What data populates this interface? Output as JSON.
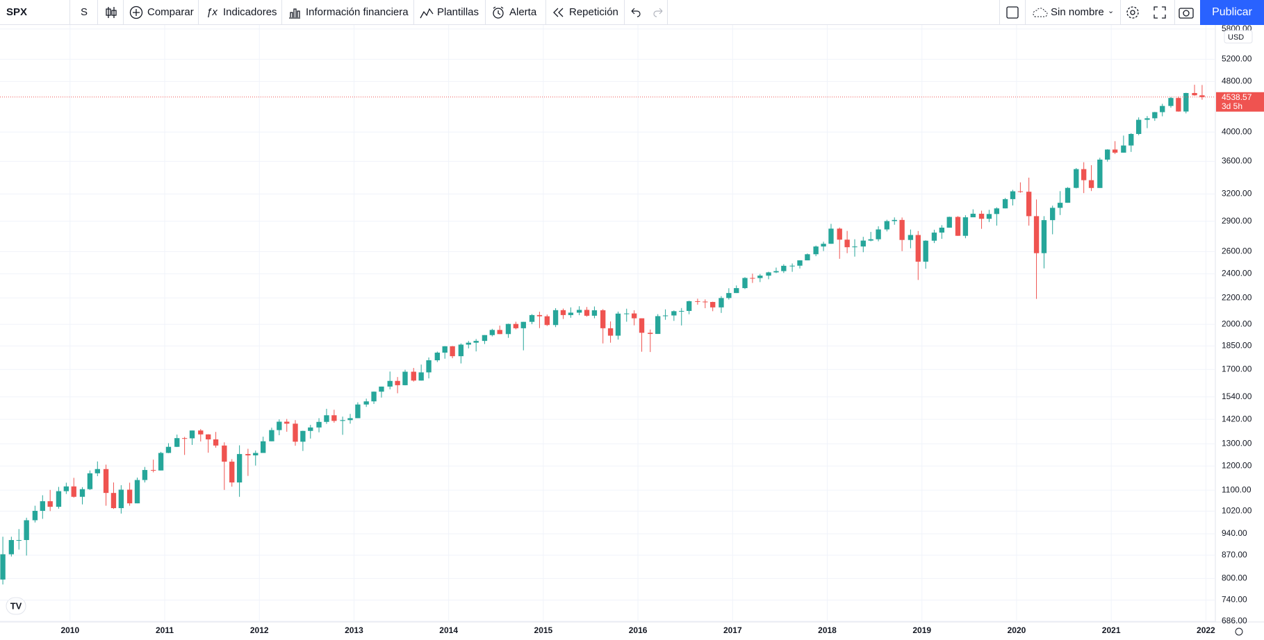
{
  "toolbar": {
    "symbol": "SPX",
    "interval": "S",
    "compare": "Comparar",
    "indicators": "Indicadores",
    "financials": "Información financiera",
    "templates": "Plantillas",
    "alert": "Alerta",
    "replay": "Repetición",
    "layout_name": "Sin nombre",
    "publish": "Publicar"
  },
  "chart_data": {
    "type": "candlestick",
    "log_scale": true,
    "grid": true,
    "currency": "USD",
    "countdown": "3d 5h",
    "last_price": 4538.57,
    "colors": {
      "up": "#26a69a",
      "down": "#ef5350",
      "last_price": "#ef5350"
    },
    "xlim": [
      2009.26,
      2022.1
    ],
    "xticks": [
      2010,
      2011,
      2012,
      2013,
      2014,
      2015,
      2016,
      2017,
      2018,
      2019,
      2020,
      2021,
      2022
    ],
    "ylim": [
      684,
      5870
    ],
    "yticks": [
      {
        "value": 686,
        "label": "686.00"
      },
      {
        "value": 740,
        "label": "740.00"
      },
      {
        "value": 800,
        "label": "800.00"
      },
      {
        "value": 870,
        "label": "870.00"
      },
      {
        "value": 940,
        "label": "940.00"
      },
      {
        "value": 1020,
        "label": "1020.00"
      },
      {
        "value": 1100,
        "label": "1100.00"
      },
      {
        "value": 1200,
        "label": "1200.00"
      },
      {
        "value": 1300,
        "label": "1300.00"
      },
      {
        "value": 1420,
        "label": "1420.00"
      },
      {
        "value": 1540,
        "label": "1540.00"
      },
      {
        "value": 1700,
        "label": "1700.00"
      },
      {
        "value": 1850,
        "label": "1850.00"
      },
      {
        "value": 2000,
        "label": "2000.00"
      },
      {
        "value": 2200,
        "label": "2200.00"
      },
      {
        "value": 2400,
        "label": "2400.00"
      },
      {
        "value": 2600,
        "label": "2600.00"
      },
      {
        "value": 2900,
        "label": "2900.00"
      },
      {
        "value": 3200,
        "label": "3200.00"
      },
      {
        "value": 3600,
        "label": "3600.00"
      },
      {
        "value": 4000,
        "label": "4000.00"
      },
      {
        "value": 4800,
        "label": "4800.00"
      },
      {
        "value": 5200,
        "label": "5200.00"
      },
      {
        "value": 5800,
        "label": "5800.00"
      }
    ],
    "x": [
      2009.29,
      2009.38,
      2009.46,
      2009.54,
      2009.63,
      2009.71,
      2009.79,
      2009.88,
      2009.96,
      2010.04,
      2010.13,
      2010.21,
      2010.29,
      2010.38,
      2010.46,
      2010.54,
      2010.63,
      2010.71,
      2010.79,
      2010.88,
      2010.96,
      2011.04,
      2011.13,
      2011.21,
      2011.29,
      2011.38,
      2011.46,
      2011.54,
      2011.63,
      2011.71,
      2011.79,
      2011.88,
      2011.96,
      2012.04,
      2012.13,
      2012.21,
      2012.29,
      2012.38,
      2012.46,
      2012.54,
      2012.63,
      2012.71,
      2012.79,
      2012.88,
      2012.96,
      2013.04,
      2013.13,
      2013.21,
      2013.29,
      2013.38,
      2013.46,
      2013.54,
      2013.63,
      2013.71,
      2013.79,
      2013.88,
      2013.96,
      2014.04,
      2014.13,
      2014.21,
      2014.29,
      2014.38,
      2014.46,
      2014.54,
      2014.63,
      2014.71,
      2014.79,
      2014.88,
      2014.96,
      2015.04,
      2015.13,
      2015.21,
      2015.29,
      2015.38,
      2015.46,
      2015.54,
      2015.63,
      2015.71,
      2015.79,
      2015.88,
      2015.96,
      2016.04,
      2016.13,
      2016.21,
      2016.29,
      2016.38,
      2016.46,
      2016.54,
      2016.63,
      2016.71,
      2016.79,
      2016.88,
      2016.96,
      2017.04,
      2017.13,
      2017.21,
      2017.29,
      2017.38,
      2017.46,
      2017.54,
      2017.63,
      2017.71,
      2017.79,
      2017.88,
      2017.96,
      2018.04,
      2018.13,
      2018.21,
      2018.29,
      2018.38,
      2018.46,
      2018.54,
      2018.63,
      2018.71,
      2018.79,
      2018.88,
      2018.96,
      2019.04,
      2019.13,
      2019.21,
      2019.29,
      2019.38,
      2019.46,
      2019.54,
      2019.63,
      2019.71,
      2019.79,
      2019.88,
      2019.96,
      2020.04,
      2020.13,
      2020.21,
      2020.29,
      2020.38,
      2020.46,
      2020.54,
      2020.63,
      2020.71,
      2020.79,
      2020.88,
      2020.96,
      2021.04,
      2021.13,
      2021.21,
      2021.29,
      2021.38,
      2021.46,
      2021.54,
      2021.63,
      2021.71,
      2021.79,
      2021.88,
      2021.96
    ],
    "open": [
      797,
      873,
      919,
      919,
      987,
      1021,
      1057,
      1036,
      1096,
      1115,
      1074,
      1104,
      1169,
      1187,
      1089,
      1031,
      1102,
      1049,
      1141,
      1183,
      1181,
      1258,
      1286,
      1327,
      1326,
      1364,
      1345,
      1321,
      1292,
      1219,
      1131,
      1253,
      1247,
      1258,
      1312,
      1366,
      1408,
      1398,
      1310,
      1362,
      1379,
      1407,
      1441,
      1412,
      1416,
      1426,
      1498,
      1515,
      1569,
      1598,
      1631,
      1606,
      1686,
      1633,
      1682,
      1757,
      1806,
      1848,
      1783,
      1859,
      1872,
      1884,
      1924,
      1960,
      1931,
      2003,
      1972,
      2018,
      2068,
      2059,
      1995,
      2105,
      2068,
      2086,
      2107,
      2063,
      2104,
      1972,
      1920,
      2079,
      2080,
      2044,
      1940,
      1932,
      2060,
      2065,
      2097,
      2099,
      2174,
      2171,
      2168,
      2126,
      2199,
      2239,
      2279,
      2364,
      2363,
      2384,
      2412,
      2423,
      2470,
      2471,
      2519,
      2575,
      2648,
      2674,
      2824,
      2714,
      2641,
      2648,
      2705,
      2718,
      2816,
      2902,
      2914,
      2711,
      2760,
      2507,
      2704,
      2784,
      2834,
      2946,
      2752,
      2942,
      2980,
      2926,
      2977,
      3038,
      3141,
      3231,
      3226,
      2954,
      2585,
      2912,
      3044,
      3100,
      3271,
      3500,
      3363,
      3270,
      3622,
      3756,
      3714,
      3811,
      3973,
      4181,
      4204,
      4298,
      4395,
      4523,
      4308,
      4605,
      4567
    ],
    "high": [
      930,
      930,
      956,
      996,
      1040,
      1080,
      1101,
      1113,
      1130,
      1150,
      1112,
      1181,
      1220,
      1206,
      1131,
      1120,
      1130,
      1151,
      1196,
      1228,
      1263,
      1303,
      1344,
      1333,
      1364,
      1371,
      1346,
      1357,
      1307,
      1230,
      1293,
      1277,
      1269,
      1334,
      1378,
      1420,
      1422,
      1416,
      1363,
      1392,
      1426,
      1475,
      1470,
      1434,
      1448,
      1510,
      1530,
      1570,
      1598,
      1687,
      1654,
      1698,
      1709,
      1730,
      1775,
      1813,
      1849,
      1850,
      1867,
      1884,
      1897,
      1924,
      1968,
      1991,
      2005,
      2019,
      2018,
      2075,
      2093,
      2072,
      2120,
      2117,
      2126,
      2135,
      2129,
      2133,
      2113,
      2021,
      2094,
      2116,
      2104,
      2044,
      1963,
      2075,
      2111,
      2103,
      2121,
      2178,
      2194,
      2188,
      2170,
      2214,
      2278,
      2301,
      2371,
      2401,
      2398,
      2418,
      2454,
      2484,
      2491,
      2519,
      2582,
      2657,
      2694,
      2873,
      2835,
      2801,
      2718,
      2742,
      2791,
      2848,
      2916,
      2941,
      2940,
      2815,
      2800,
      2708,
      2813,
      2860,
      2949,
      2954,
      2964,
      3028,
      3013,
      3022,
      3050,
      3154,
      3248,
      3337,
      3394,
      3137,
      2954,
      3068,
      3233,
      3280,
      3514,
      3588,
      3550,
      3646,
      3760,
      3871,
      3950,
      3984,
      4218,
      4238,
      4302,
      4429,
      4538,
      4546,
      4609,
      4744,
      4740
    ],
    "low": [
      783,
      866,
      888,
      869,
      979,
      992,
      1020,
      1029,
      1085,
      1071,
      1045,
      1101,
      1157,
      1040,
      1028,
      1011,
      1040,
      1049,
      1131,
      1173,
      1181,
      1257,
      1285,
      1249,
      1295,
      1311,
      1259,
      1282,
      1101,
      1114,
      1074,
      1158,
      1202,
      1258,
      1312,
      1341,
      1358,
      1291,
      1267,
      1325,
      1355,
      1397,
      1403,
      1343,
      1398,
      1426,
      1485,
      1501,
      1536,
      1582,
      1560,
      1605,
      1627,
      1633,
      1646,
      1746,
      1767,
      1770,
      1737,
      1834,
      1814,
      1863,
      1915,
      1930,
      1905,
      1964,
      1821,
      2001,
      1973,
      1988,
      1980,
      2039,
      2048,
      2067,
      2056,
      2044,
      1867,
      1872,
      1893,
      2019,
      1993,
      1812,
      1810,
      1932,
      2033,
      2025,
      1992,
      2074,
      2147,
      2120,
      2097,
      2084,
      2187,
      2239,
      2271,
      2322,
      2329,
      2353,
      2406,
      2407,
      2417,
      2446,
      2519,
      2557,
      2605,
      2674,
      2533,
      2585,
      2553,
      2594,
      2698,
      2698,
      2796,
      2864,
      2604,
      2631,
      2347,
      2444,
      2681,
      2722,
      2834,
      2751,
      2728,
      2942,
      2822,
      2892,
      2855,
      3038,
      3070,
      3214,
      2855,
      2192,
      2447,
      2767,
      2966,
      3100,
      3265,
      3210,
      3234,
      3270,
      3596,
      3695,
      3714,
      3724,
      3955,
      4057,
      4165,
      4234,
      4368,
      4306,
      4279,
      4560,
      4495
    ],
    "close": [
      873,
      919,
      919,
      987,
      1021,
      1057,
      1036,
      1096,
      1115,
      1074,
      1104,
      1169,
      1187,
      1089,
      1031,
      1102,
      1049,
      1141,
      1183,
      1181,
      1258,
      1286,
      1327,
      1326,
      1364,
      1345,
      1321,
      1292,
      1219,
      1131,
      1253,
      1247,
      1258,
      1312,
      1366,
      1408,
      1398,
      1310,
      1362,
      1379,
      1407,
      1441,
      1412,
      1416,
      1426,
      1498,
      1515,
      1569,
      1598,
      1631,
      1606,
      1686,
      1633,
      1682,
      1757,
      1806,
      1848,
      1783,
      1859,
      1872,
      1884,
      1924,
      1960,
      1931,
      2003,
      1972,
      2018,
      2068,
      2059,
      1995,
      2105,
      2068,
      2086,
      2107,
      2063,
      2104,
      1972,
      1920,
      2079,
      2080,
      2044,
      1940,
      1932,
      2060,
      2065,
      2097,
      2099,
      2174,
      2171,
      2168,
      2126,
      2199,
      2239,
      2279,
      2364,
      2363,
      2384,
      2412,
      2423,
      2470,
      2471,
      2519,
      2575,
      2648,
      2674,
      2824,
      2714,
      2641,
      2648,
      2705,
      2718,
      2816,
      2902,
      2914,
      2711,
      2760,
      2507,
      2704,
      2784,
      2834,
      2946,
      2752,
      2942,
      2980,
      2926,
      2977,
      3038,
      3141,
      3231,
      3226,
      2954,
      2585,
      2912,
      3044,
      3100,
      3271,
      3500,
      3363,
      3270,
      3622,
      3756,
      3714,
      3811,
      3973,
      4181,
      4204,
      4298,
      4395,
      4523,
      4308,
      4605,
      4567,
      4538.57
    ]
  }
}
